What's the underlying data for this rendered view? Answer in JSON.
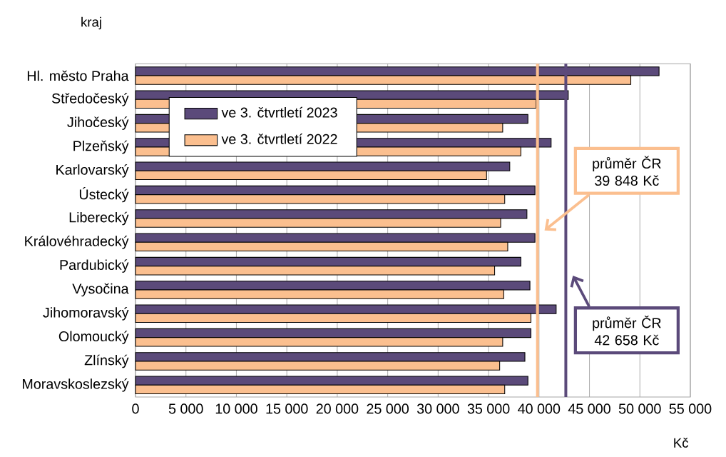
{
  "chart_data": {
    "type": "bar",
    "orientation": "horizontal",
    "xlabel": "Kč",
    "ylabel": "kraj",
    "categories": [
      "Hl. město Praha",
      "Středočeský",
      "Jihočeský",
      "Plzeňský",
      "Karlovarský",
      "Ústecký",
      "Liberecký",
      "Královéhradecký",
      "Pardubický",
      "Vysočina",
      "Jihomoravský",
      "Olomoucký",
      "Zlínský",
      "Moravskoslezský"
    ],
    "series": [
      {
        "name": "ve 3. čtvrtletí 2023",
        "color": "#5b4a7a",
        "values": [
          51900,
          42900,
          38900,
          41200,
          37100,
          39600,
          38800,
          39600,
          38200,
          39100,
          41700,
          39200,
          38600,
          38900
        ]
      },
      {
        "name": "ve 3. čtvrtletí 2022",
        "color": "#fbbf8f",
        "values": [
          49100,
          39700,
          36400,
          38200,
          34800,
          36600,
          36200,
          36900,
          35600,
          36500,
          39200,
          36400,
          36100,
          36600
        ]
      }
    ],
    "xlim": [
      0,
      55000
    ],
    "xticks": [
      0,
      {
        "value": 5000,
        "label": "5 000"
      },
      {
        "value": 10000,
        "label": "10 000"
      },
      {
        "value": 15000,
        "label": "15 000"
      },
      {
        "value": 20000,
        "label": "20 000"
      },
      {
        "value": 25000,
        "label": "25 000"
      },
      {
        "value": 30000,
        "label": "30 000"
      },
      {
        "value": 35000,
        "label": "35 000"
      },
      {
        "value": 40000,
        "label": "40 000"
      },
      {
        "value": 45000,
        "label": "45 000"
      },
      {
        "value": 50000,
        "label": "50 000"
      },
      {
        "value": 55000,
        "label": "55 000"
      }
    ],
    "ref_lines": [
      {
        "axis": "x",
        "value": 39848,
        "label": "průměr ČR 39 848 Kč",
        "color": "#fbbf8f"
      },
      {
        "axis": "x",
        "value": 42658,
        "label": "průměr ČR 42 658 Kč",
        "color": "#5b4a7a"
      }
    ],
    "grid": "x",
    "legend": "top left"
  }
}
